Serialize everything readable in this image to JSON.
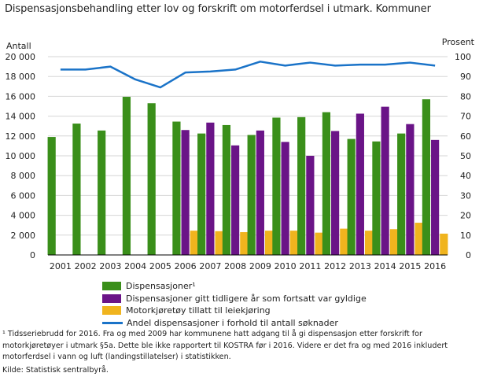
{
  "title": "Dispensasjonsbehandling etter lov og forskrift om motorferdsel i utmark. Kommuner",
  "chart_data": {
    "type": "bar",
    "title": "Dispensasjonsbehandling etter lov og forskrift om motorferdsel i utmark. Kommuner",
    "categories": [
      "2001",
      "2002",
      "2003",
      "2004",
      "2005",
      "2006",
      "2007",
      "2008",
      "2009",
      "2010",
      "2011",
      "2012",
      "2013",
      "2014",
      "2015",
      "2016"
    ],
    "series": [
      {
        "name": "Dispensasjoner¹",
        "type": "bar",
        "axis": "left",
        "color": "#3a8f1a",
        "values": [
          11900,
          13250,
          12550,
          15950,
          15300,
          13450,
          12250,
          13100,
          12100,
          13850,
          13900,
          14400,
          11700,
          11450,
          12250,
          15700
        ]
      },
      {
        "name": "Dispensasjoner gitt tidligere år som fortsatt var gyldige",
        "type": "bar",
        "axis": "left",
        "color": "#6a1487",
        "values": [
          null,
          null,
          null,
          null,
          null,
          12600,
          13350,
          11050,
          12550,
          11400,
          10000,
          12500,
          14250,
          14950,
          13200,
          11600
        ]
      },
      {
        "name": "Motorkjøretøy tillatt til leiekjøring",
        "type": "bar",
        "axis": "left",
        "color": "#f0b41e",
        "values": [
          null,
          null,
          null,
          null,
          null,
          2450,
          2400,
          2300,
          2450,
          2450,
          2250,
          2650,
          2450,
          2600,
          3250,
          2150
        ]
      },
      {
        "name": "Andel dispensasjoner i forhold til antall søknader",
        "type": "line",
        "axis": "right",
        "color": "#1a73c8",
        "values": [
          93.5,
          93.5,
          95,
          88.5,
          84.5,
          92,
          92.5,
          93.5,
          97.5,
          95.5,
          97,
          95.5,
          96,
          96,
          97,
          95.5
        ]
      }
    ],
    "ylabel_left": "Antall",
    "ylabel_right": "Prosent",
    "ylim_left": [
      0,
      20000
    ],
    "ylim_right": [
      0,
      100
    ],
    "yticks_left": [
      "0",
      "2 000",
      "4 000",
      "6 000",
      "8 000",
      "10 000",
      "12 000",
      "14 000",
      "16 000",
      "18 000",
      "20 000"
    ],
    "yticks_right": [
      "0",
      "10",
      "20",
      "30",
      "40",
      "50",
      "60",
      "70",
      "80",
      "90",
      "100"
    ],
    "grid": true,
    "legend_position": "bottom"
  },
  "footnote": "¹ Tidsseriebrudd for 2016. Fra og med 2009 har kommunene hatt adgang til å gi dispensasjon etter forskrift for motorkjøretøyer i utmark §5a. Dette ble ikke rapportert til KOSTRA før i 2016. Videre er det fra og med 2016 inkludert motorferdsel i vann og luft (landingstillatelser) i statistikken.",
  "source": "Kilde: Statistisk sentralbyrå."
}
